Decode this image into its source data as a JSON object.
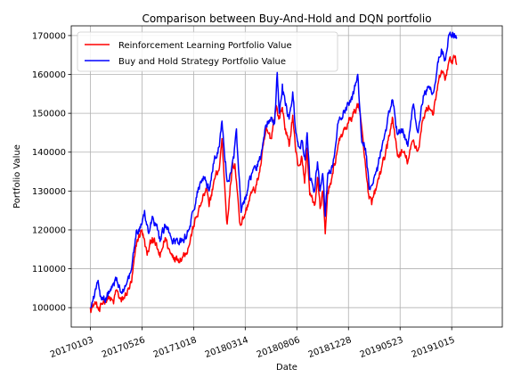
{
  "chart_data": {
    "type": "line",
    "title": "Comparison between Buy-And-Hold and DQN portfolio",
    "xlabel": "Date",
    "ylabel": "Portfolio Value",
    "ylim": [
      95000,
      172500
    ],
    "yticks": [
      100000,
      110000,
      120000,
      130000,
      140000,
      150000,
      160000,
      170000
    ],
    "xticks": [
      "20170103",
      "20170526",
      "20171018",
      "20180314",
      "20180806",
      "20181228",
      "20190523",
      "20191015"
    ],
    "xtick_index": [
      0,
      100,
      200,
      300,
      400,
      500,
      600,
      700
    ],
    "xlim": [
      -37,
      798
    ],
    "grid": true,
    "legend_position": "upper-left",
    "series": [
      {
        "name": "Reinforcement Learning Portfolio Value",
        "color": "#ff0000",
        "keypoints": [
          [
            0,
            100000
          ],
          [
            10,
            101000
          ],
          [
            18,
            99000
          ],
          [
            25,
            101500
          ],
          [
            35,
            103000
          ],
          [
            45,
            101000
          ],
          [
            50,
            104500
          ],
          [
            60,
            101500
          ],
          [
            70,
            103500
          ],
          [
            80,
            106500
          ],
          [
            90,
            117000
          ],
          [
            100,
            120000
          ],
          [
            110,
            113500
          ],
          [
            120,
            118000
          ],
          [
            130,
            115000
          ],
          [
            135,
            113000
          ],
          [
            145,
            118000
          ],
          [
            155,
            114000
          ],
          [
            160,
            113500
          ],
          [
            170,
            112500
          ],
          [
            180,
            113500
          ],
          [
            190,
            115500
          ],
          [
            200,
            121000
          ],
          [
            215,
            127000
          ],
          [
            225,
            130500
          ],
          [
            230,
            126000
          ],
          [
            240,
            133000
          ],
          [
            250,
            136000
          ],
          [
            255,
            143500
          ],
          [
            260,
            132000
          ],
          [
            265,
            121500
          ],
          [
            270,
            129000
          ],
          [
            275,
            136000
          ],
          [
            280,
            137000
          ],
          [
            285,
            129500
          ],
          [
            290,
            121500
          ],
          [
            300,
            124000
          ],
          [
            310,
            129000
          ],
          [
            320,
            130500
          ],
          [
            330,
            136500
          ],
          [
            340,
            145500
          ],
          [
            350,
            143500
          ],
          [
            360,
            152000
          ],
          [
            365,
            148500
          ],
          [
            372,
            151500
          ],
          [
            378,
            146000
          ],
          [
            385,
            141500
          ],
          [
            392,
            149500
          ],
          [
            398,
            140000
          ],
          [
            403,
            136500
          ],
          [
            410,
            138500
          ],
          [
            415,
            132000
          ],
          [
            420,
            141000
          ],
          [
            425,
            129000
          ],
          [
            435,
            126500
          ],
          [
            440,
            133500
          ],
          [
            445,
            125500
          ],
          [
            450,
            130000
          ],
          [
            455,
            119000
          ],
          [
            460,
            130000
          ],
          [
            470,
            134500
          ],
          [
            480,
            142000
          ],
          [
            490,
            145500
          ],
          [
            500,
            147500
          ],
          [
            510,
            150000
          ],
          [
            520,
            152500
          ],
          [
            530,
            140000
          ],
          [
            535,
            133500
          ],
          [
            540,
            128000
          ],
          [
            545,
            126500
          ],
          [
            555,
            131500
          ],
          [
            565,
            136500
          ],
          [
            575,
            141000
          ],
          [
            585,
            149000
          ],
          [
            595,
            139000
          ],
          [
            605,
            140000
          ],
          [
            615,
            137500
          ],
          [
            625,
            143000
          ],
          [
            635,
            140500
          ],
          [
            645,
            149000
          ],
          [
            655,
            152000
          ],
          [
            665,
            150000
          ],
          [
            672,
            156000
          ],
          [
            680,
            161000
          ],
          [
            687,
            158500
          ],
          [
            694,
            163000
          ],
          [
            700,
            163500
          ],
          [
            705,
            164500
          ],
          [
            710,
            162500
          ]
        ]
      },
      {
        "name": "Buy and Hold Strategy Portfolio Value",
        "color": "#0000ff",
        "keypoints": [
          [
            0,
            100000
          ],
          [
            8,
            103000
          ],
          [
            15,
            107000
          ],
          [
            20,
            103000
          ],
          [
            30,
            102500
          ],
          [
            40,
            104500
          ],
          [
            50,
            107000
          ],
          [
            60,
            104000
          ],
          [
            70,
            106000
          ],
          [
            80,
            110000
          ],
          [
            90,
            120000
          ],
          [
            100,
            121500
          ],
          [
            105,
            125000
          ],
          [
            112,
            119500
          ],
          [
            120,
            123500
          ],
          [
            130,
            120000
          ],
          [
            135,
            117000
          ],
          [
            145,
            121000
          ],
          [
            155,
            118500
          ],
          [
            160,
            116500
          ],
          [
            170,
            116500
          ],
          [
            180,
            117500
          ],
          [
            190,
            120000
          ],
          [
            200,
            125000
          ],
          [
            210,
            131000
          ],
          [
            220,
            133500
          ],
          [
            230,
            130000
          ],
          [
            240,
            138000
          ],
          [
            250,
            141500
          ],
          [
            255,
            148000
          ],
          [
            262,
            137500
          ],
          [
            266,
            132500
          ],
          [
            270,
            134000
          ],
          [
            278,
            138500
          ],
          [
            283,
            146000
          ],
          [
            288,
            134000
          ],
          [
            292,
            124500
          ],
          [
            300,
            128500
          ],
          [
            310,
            133500
          ],
          [
            320,
            136000
          ],
          [
            330,
            138500
          ],
          [
            340,
            147000
          ],
          [
            350,
            149000
          ],
          [
            357,
            147500
          ],
          [
            362,
            160500
          ],
          [
            366,
            150000
          ],
          [
            372,
            157500
          ],
          [
            378,
            152000
          ],
          [
            385,
            148500
          ],
          [
            392,
            155500
          ],
          [
            398,
            145000
          ],
          [
            403,
            141500
          ],
          [
            410,
            143000
          ],
          [
            416,
            138000
          ],
          [
            420,
            145000
          ],
          [
            425,
            133000
          ],
          [
            435,
            130500
          ],
          [
            440,
            137500
          ],
          [
            445,
            130000
          ],
          [
            450,
            134500
          ],
          [
            455,
            123500
          ],
          [
            460,
            134500
          ],
          [
            470,
            137000
          ],
          [
            480,
            147500
          ],
          [
            490,
            150500
          ],
          [
            500,
            152500
          ],
          [
            510,
            155000
          ],
          [
            518,
            160000
          ],
          [
            525,
            144000
          ],
          [
            530,
            142500
          ],
          [
            535,
            139000
          ],
          [
            540,
            130500
          ],
          [
            545,
            131500
          ],
          [
            555,
            136000
          ],
          [
            565,
            141500
          ],
          [
            575,
            147500
          ],
          [
            585,
            153500
          ],
          [
            595,
            144500
          ],
          [
            605,
            146000
          ],
          [
            615,
            141500
          ],
          [
            625,
            152000
          ],
          [
            635,
            145000
          ],
          [
            645,
            154500
          ],
          [
            655,
            157000
          ],
          [
            665,
            155500
          ],
          [
            672,
            162000
          ],
          [
            680,
            166500
          ],
          [
            687,
            164000
          ],
          [
            694,
            170000
          ],
          [
            700,
            169500
          ],
          [
            705,
            170500
          ],
          [
            710,
            169500
          ]
        ]
      }
    ]
  }
}
